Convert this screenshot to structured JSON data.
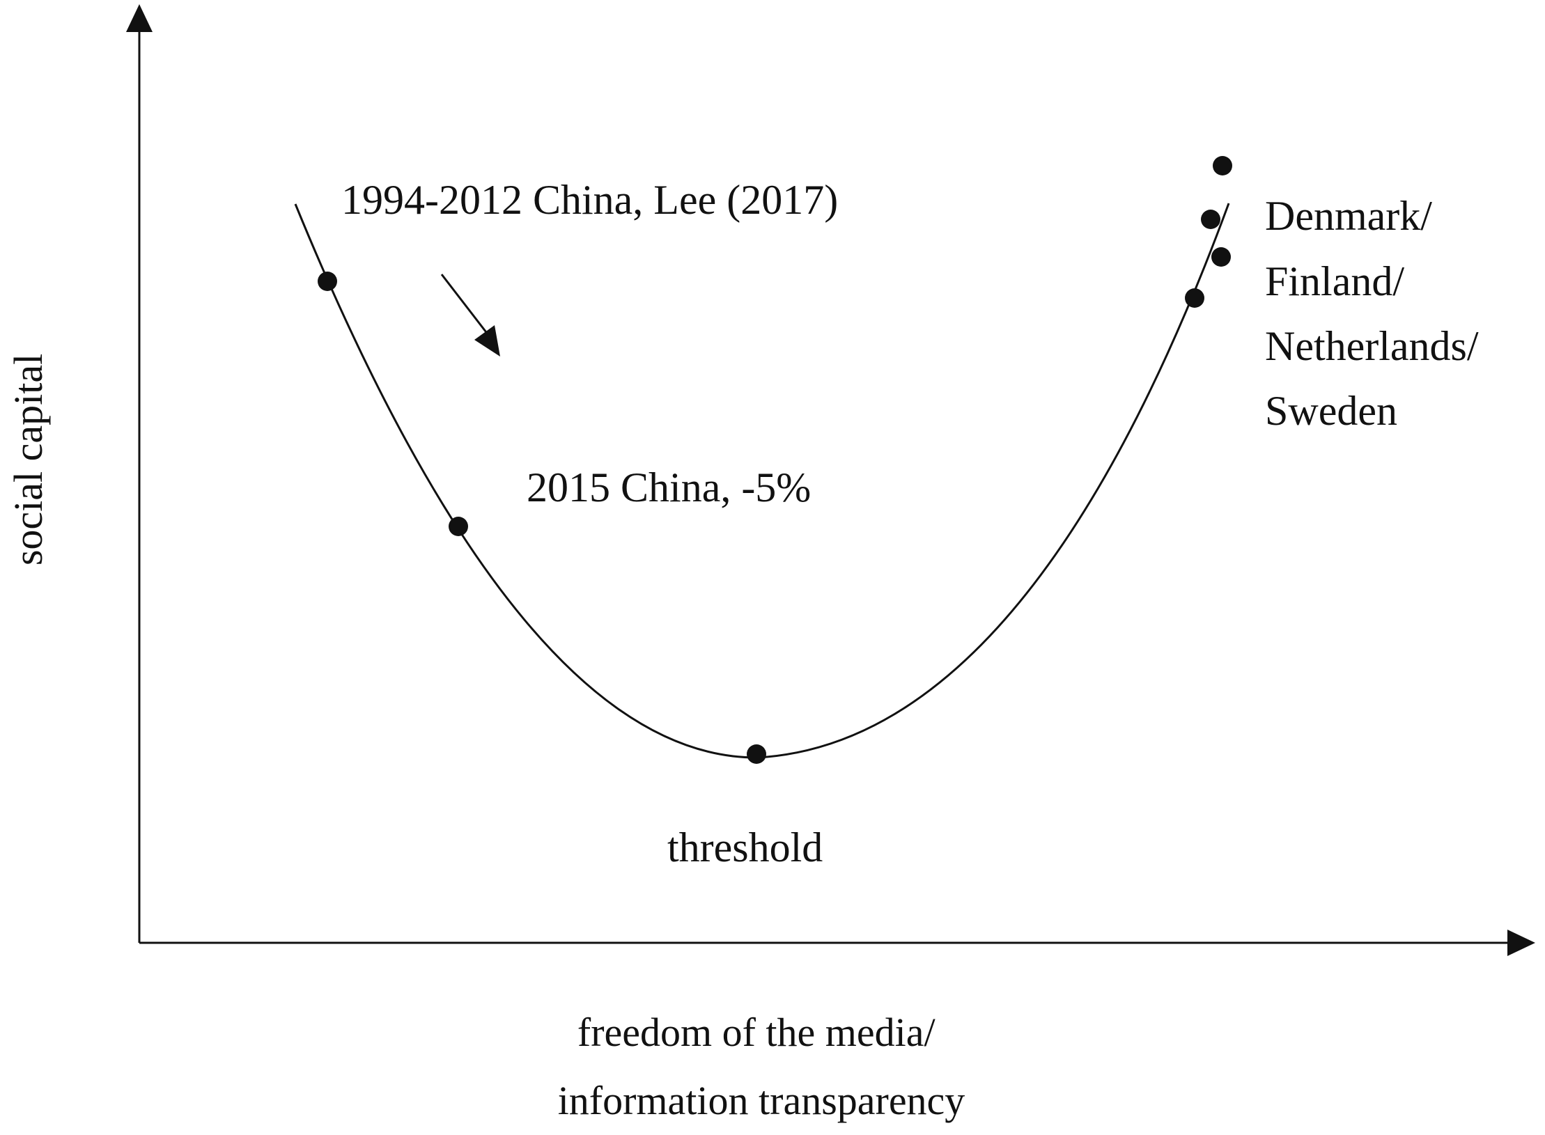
{
  "figure": {
    "y_axis_label": "social capital",
    "x_axis_label_lines": [
      "freedom of the media/",
      "information transparency"
    ],
    "annotations": {
      "china_1994_2012": "1994-2012 China, Lee (2017)",
      "china_2015": "2015 China, -5%",
      "threshold": "threshold",
      "nordic_lines": [
        "Denmark/",
        "Finland/",
        "Netherlands/",
        "Sweden"
      ]
    },
    "colors": {
      "ink": "#111111",
      "background": "#ffffff"
    }
  }
}
